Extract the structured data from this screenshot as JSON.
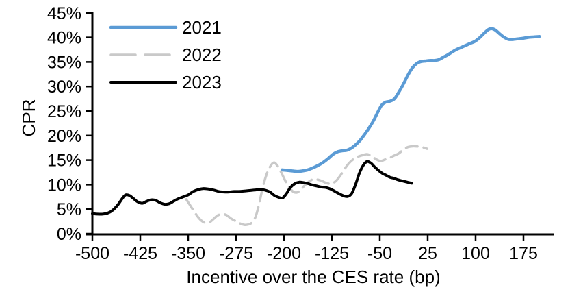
{
  "chart_data": {
    "type": "line",
    "title": "",
    "xlabel": "Incentive over the CES rate (bp)",
    "ylabel": "CPR",
    "grid": false,
    "legend_position": "top-left",
    "axis_color": "#000000",
    "x_axis": {
      "min": -500,
      "max": 225,
      "ticks": [
        -500,
        -425,
        -350,
        -275,
        -200,
        -125,
        -50,
        25,
        100,
        175
      ],
      "tick_suffix": ""
    },
    "y_axis": {
      "min": 0,
      "max": 45,
      "ticks": [
        0,
        5,
        10,
        15,
        20,
        25,
        30,
        35,
        40,
        45
      ],
      "tick_suffix": "%"
    },
    "series": [
      {
        "name": "2021",
        "color": "#5B9BD5",
        "dash": false,
        "points": [
          [
            -203,
            13.0
          ],
          [
            -195,
            12.9
          ],
          [
            -187,
            12.8
          ],
          [
            -179,
            12.7
          ],
          [
            -171,
            12.8
          ],
          [
            -163,
            13.0
          ],
          [
            -155,
            13.4
          ],
          [
            -147,
            13.9
          ],
          [
            -139,
            14.5
          ],
          [
            -131,
            15.3
          ],
          [
            -123,
            16.2
          ],
          [
            -116,
            16.7
          ],
          [
            -109,
            16.9
          ],
          [
            -102,
            17.0
          ],
          [
            -95,
            17.4
          ],
          [
            -88,
            18.1
          ],
          [
            -81,
            19.0
          ],
          [
            -74,
            20.2
          ],
          [
            -67,
            21.5
          ],
          [
            -60,
            23.0
          ],
          [
            -53,
            24.8
          ],
          [
            -47,
            26.2
          ],
          [
            -41,
            26.8
          ],
          [
            -34,
            27.0
          ],
          [
            -27,
            27.5
          ],
          [
            -20,
            28.9
          ],
          [
            -13,
            30.5
          ],
          [
            -6,
            32.3
          ],
          [
            1,
            33.8
          ],
          [
            8,
            34.7
          ],
          [
            15,
            35.1
          ],
          [
            22,
            35.2
          ],
          [
            29,
            35.3
          ],
          [
            36,
            35.3
          ],
          [
            43,
            35.5
          ],
          [
            50,
            36.0
          ],
          [
            57,
            36.5
          ],
          [
            64,
            37.1
          ],
          [
            71,
            37.6
          ],
          [
            78,
            38.0
          ],
          [
            85,
            38.4
          ],
          [
            92,
            38.8
          ],
          [
            99,
            39.2
          ],
          [
            106,
            39.9
          ],
          [
            113,
            40.8
          ],
          [
            120,
            41.6
          ],
          [
            125,
            41.8
          ],
          [
            131,
            41.5
          ],
          [
            138,
            40.7
          ],
          [
            145,
            40.0
          ],
          [
            152,
            39.6
          ],
          [
            159,
            39.6
          ],
          [
            166,
            39.7
          ],
          [
            173,
            39.8
          ],
          [
            182,
            40.0
          ],
          [
            191,
            40.1
          ],
          [
            200,
            40.2
          ]
        ]
      },
      {
        "name": "2022",
        "color": "#C9C9C9",
        "dash": true,
        "points": [
          [
            -353,
            7.0
          ],
          [
            -346,
            5.6
          ],
          [
            -339,
            4.2
          ],
          [
            -332,
            3.0
          ],
          [
            -325,
            2.3
          ],
          [
            -318,
            2.2
          ],
          [
            -311,
            2.9
          ],
          [
            -304,
            3.7
          ],
          [
            -297,
            4.0
          ],
          [
            -290,
            3.8
          ],
          [
            -283,
            3.1
          ],
          [
            -276,
            2.6
          ],
          [
            -269,
            2.1
          ],
          [
            -262,
            1.8
          ],
          [
            -255,
            1.9
          ],
          [
            -249,
            2.4
          ],
          [
            -244,
            3.6
          ],
          [
            -239,
            6.0
          ],
          [
            -234,
            9.0
          ],
          [
            -228,
            11.8
          ],
          [
            -222,
            13.6
          ],
          [
            -216,
            14.5
          ],
          [
            -210,
            13.8
          ],
          [
            -204,
            12.4
          ],
          [
            -198,
            10.8
          ],
          [
            -192,
            9.5
          ],
          [
            -186,
            8.6
          ],
          [
            -180,
            8.4
          ],
          [
            -174,
            8.9
          ],
          [
            -168,
            9.8
          ],
          [
            -161,
            10.6
          ],
          [
            -154,
            11.1
          ],
          [
            -147,
            11.0
          ],
          [
            -140,
            10.7
          ],
          [
            -133,
            10.3
          ],
          [
            -126,
            10.2
          ],
          [
            -119,
            10.7
          ],
          [
            -112,
            11.8
          ],
          [
            -105,
            13.2
          ],
          [
            -98,
            14.4
          ],
          [
            -91,
            15.2
          ],
          [
            -84,
            15.7
          ],
          [
            -77,
            16.0
          ],
          [
            -70,
            16.2
          ],
          [
            -63,
            15.8
          ],
          [
            -56,
            15.2
          ],
          [
            -49,
            14.8
          ],
          [
            -42,
            15.1
          ],
          [
            -35,
            15.4
          ],
          [
            -28,
            15.9
          ],
          [
            -21,
            16.3
          ],
          [
            -14,
            17.0
          ],
          [
            -7,
            17.6
          ],
          [
            0,
            17.8
          ],
          [
            7,
            17.8
          ],
          [
            14,
            17.7
          ],
          [
            20,
            17.5
          ],
          [
            24,
            17.3
          ]
        ]
      },
      {
        "name": "2023",
        "color": "#000000",
        "dash": false,
        "points": [
          [
            -500,
            4.1
          ],
          [
            -492,
            4.0
          ],
          [
            -484,
            4.0
          ],
          [
            -476,
            4.2
          ],
          [
            -468,
            4.8
          ],
          [
            -460,
            5.9
          ],
          [
            -453,
            7.2
          ],
          [
            -448,
            7.9
          ],
          [
            -442,
            7.8
          ],
          [
            -436,
            7.2
          ],
          [
            -429,
            6.5
          ],
          [
            -422,
            6.2
          ],
          [
            -415,
            6.6
          ],
          [
            -408,
            6.9
          ],
          [
            -401,
            6.8
          ],
          [
            -394,
            6.3
          ],
          [
            -387,
            6.0
          ],
          [
            -380,
            6.1
          ],
          [
            -373,
            6.6
          ],
          [
            -366,
            7.1
          ],
          [
            -358,
            7.5
          ],
          [
            -350,
            7.9
          ],
          [
            -342,
            8.6
          ],
          [
            -334,
            9.0
          ],
          [
            -326,
            9.2
          ],
          [
            -318,
            9.1
          ],
          [
            -310,
            8.9
          ],
          [
            -302,
            8.6
          ],
          [
            -294,
            8.5
          ],
          [
            -286,
            8.5
          ],
          [
            -278,
            8.6
          ],
          [
            -270,
            8.6
          ],
          [
            -262,
            8.7
          ],
          [
            -254,
            8.8
          ],
          [
            -246,
            8.9
          ],
          [
            -238,
            9.0
          ],
          [
            -230,
            8.9
          ],
          [
            -222,
            8.5
          ],
          [
            -215,
            7.8
          ],
          [
            -208,
            7.4
          ],
          [
            -202,
            7.3
          ],
          [
            -196,
            8.2
          ],
          [
            -190,
            9.4
          ],
          [
            -183,
            10.2
          ],
          [
            -176,
            10.5
          ],
          [
            -169,
            10.4
          ],
          [
            -162,
            10.2
          ],
          [
            -155,
            9.9
          ],
          [
            -148,
            9.7
          ],
          [
            -141,
            9.5
          ],
          [
            -134,
            9.4
          ],
          [
            -127,
            9.1
          ],
          [
            -120,
            8.6
          ],
          [
            -113,
            8.1
          ],
          [
            -106,
            7.7
          ],
          [
            -100,
            7.6
          ],
          [
            -94,
            8.2
          ],
          [
            -88,
            10.0
          ],
          [
            -82,
            12.3
          ],
          [
            -76,
            13.9
          ],
          [
            -70,
            14.7
          ],
          [
            -64,
            14.4
          ],
          [
            -58,
            13.6
          ],
          [
            -52,
            12.9
          ],
          [
            -46,
            12.3
          ],
          [
            -40,
            11.9
          ],
          [
            -34,
            11.5
          ],
          [
            -28,
            11.3
          ],
          [
            -22,
            11.0
          ],
          [
            -16,
            10.8
          ],
          [
            -10,
            10.6
          ],
          [
            -4,
            10.4
          ],
          [
            0,
            10.3
          ]
        ]
      }
    ]
  }
}
